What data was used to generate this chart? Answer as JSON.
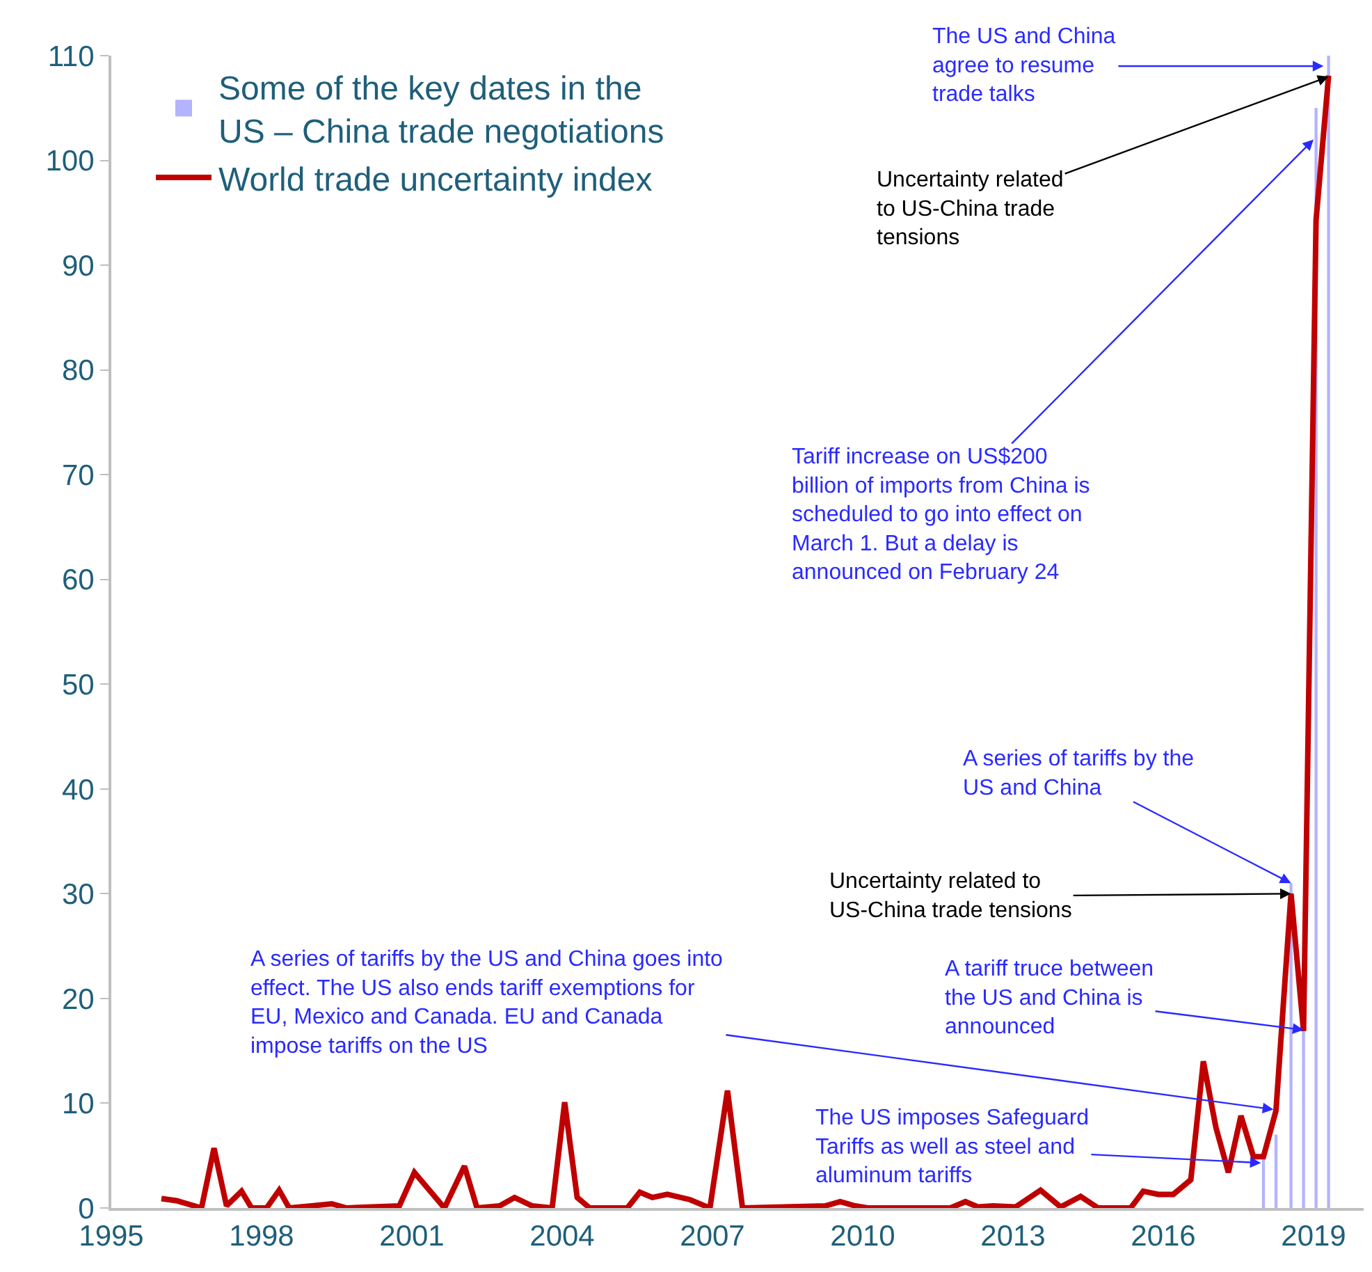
{
  "chart_data": {
    "type": "line",
    "xlim": [
      1995,
      2020
    ],
    "xticks": [
      1995,
      1998,
      2001,
      2004,
      2007,
      2010,
      2013,
      2016,
      2019
    ],
    "ylim": [
      0,
      110
    ],
    "yticks": [
      0,
      10,
      20,
      30,
      40,
      50,
      60,
      70,
      80,
      90,
      100,
      110
    ],
    "legend": "top left",
    "series": [
      {
        "name": "Some of the key dates in the\nUS – China trade negotiations",
        "type": "bar",
        "color": "#b3b3ff",
        "x": [
          2018.0,
          2018.25,
          2018.55,
          2018.8,
          2019.05,
          2019.3
        ],
        "values": [
          5,
          7,
          31,
          17,
          105,
          110
        ]
      },
      {
        "name": "World trade uncertainty index",
        "color": "#c00000",
        "x": [
          1996.0,
          1996.3,
          1996.8,
          1997.05,
          1997.3,
          1997.6,
          1997.8,
          1998.1,
          1998.35,
          1998.55,
          1999.0,
          1999.4,
          1999.7,
          2000.75,
          2001.05,
          2001.65,
          2002.05,
          2002.3,
          2002.75,
          2003.05,
          2003.4,
          2003.8,
          2004.05,
          2004.3,
          2004.55,
          2005.3,
          2005.55,
          2005.8,
          2006.1,
          2006.55,
          2006.95,
          2007.3,
          2007.6,
          2009.25,
          2009.55,
          2009.85,
          2010.1,
          2011.75,
          2012.05,
          2012.3,
          2012.6,
          2013.05,
          2013.55,
          2013.95,
          2014.35,
          2014.7,
          2015.35,
          2015.6,
          2015.9,
          2016.2,
          2016.55,
          2016.8,
          2017.05,
          2017.3,
          2017.55,
          2017.8,
          2018.0,
          2018.25,
          2018.55,
          2018.8,
          2019.05,
          2019.3
        ],
        "values": [
          0.9,
          0.7,
          0,
          5.7,
          0.2,
          1.6,
          0,
          0,
          1.7,
          0,
          0.2,
          0.4,
          0,
          0.2,
          3.4,
          0,
          4.0,
          0,
          0.2,
          1.0,
          0.2,
          0,
          10.1,
          1.0,
          0,
          0,
          1.5,
          1.0,
          1.3,
          0.8,
          0,
          11.2,
          0,
          0.2,
          0.6,
          0.2,
          0,
          0,
          0.6,
          0.1,
          0.2,
          0.1,
          1.7,
          0.1,
          1.1,
          0,
          0,
          1.6,
          1.3,
          1.3,
          2.7,
          14,
          7.7,
          3.4,
          8.8,
          4.9,
          4.9,
          9.3,
          30.0,
          16.9,
          94.3,
          108.1
        ]
      }
    ],
    "annotations": [
      {
        "text": "The US and China\nagree to resume\ntrade talks",
        "x": 2019.2,
        "y": 109
      },
      {
        "text": "Uncertainty related\nto US-China trade\ntensions",
        "x": 2019.3,
        "y": 108
      },
      {
        "text": "Tariff increase on US$200\nbillion of imports from China is\nscheduled to go into effect on\nMarch 1. But a delay is\nannounced on February 24",
        "x": 2019.0,
        "y": 102
      },
      {
        "text": "A series of tariffs by the\nUS and China",
        "x": 2018.55,
        "y": 31
      },
      {
        "text": "Uncertainty related to\nUS-China trade tensions",
        "x": 2018.55,
        "y": 30
      },
      {
        "text": "A tariff truce between\nthe US and China is\nannounced",
        "x": 2018.8,
        "y": 17
      },
      {
        "text": "A series of tariffs by the US and China goes into\neffect. The US also ends tariff exemptions for\nEU, Mexico and Canada. EU and Canada\nimpose tariffs on the US",
        "x": 2018.2,
        "y": 9.4
      },
      {
        "text": "The US imposes Safeguard\nTariffs as well as steel and\naluminum tariffs",
        "x": 2017.95,
        "y": 4.3
      }
    ]
  }
}
